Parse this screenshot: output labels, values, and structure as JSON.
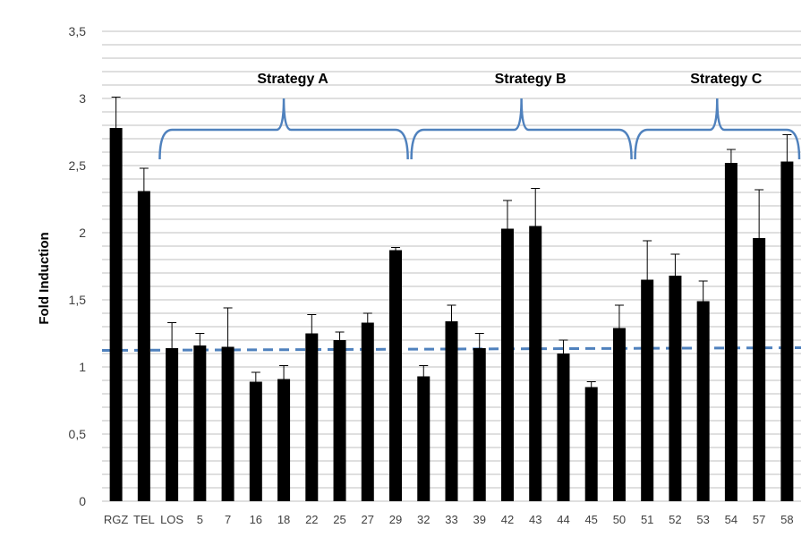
{
  "chart_data": {
    "type": "bar",
    "title": "",
    "xlabel": "",
    "ylabel": "Fold Induction",
    "ylim": [
      0,
      3.5
    ],
    "y_ticks": [
      "0",
      "0,5",
      "1",
      "1,5",
      "2",
      "2,5",
      "3",
      "3,5"
    ],
    "grid": true,
    "categories": [
      "RGZ",
      "TEL",
      "LOS",
      "5",
      "7",
      "16",
      "18",
      "22",
      "25",
      "27",
      "29",
      "32",
      "33",
      "39",
      "42",
      "43",
      "44",
      "45",
      "50",
      "51",
      "52",
      "53",
      "54",
      "57",
      "58"
    ],
    "values": [
      2.78,
      2.31,
      1.14,
      1.16,
      1.15,
      0.89,
      0.91,
      1.25,
      1.2,
      1.33,
      1.87,
      0.93,
      1.34,
      1.14,
      2.03,
      2.05,
      1.1,
      0.85,
      1.29,
      1.65,
      1.68,
      1.49,
      2.52,
      1.96,
      2.53
    ],
    "error": [
      0.23,
      0.17,
      0.19,
      0.09,
      0.29,
      0.07,
      0.1,
      0.14,
      0.06,
      0.07,
      0.02,
      0.08,
      0.12,
      0.11,
      0.21,
      0.28,
      0.1,
      0.04,
      0.17,
      0.29,
      0.16,
      0.15,
      0.1,
      0.36,
      0.2
    ],
    "reference_line": 1.13,
    "groups": [
      {
        "label": "Strategy A",
        "from": "LOS",
        "to": "29"
      },
      {
        "label": "Strategy B",
        "from": "32",
        "to": "50"
      },
      {
        "label": "Strategy C",
        "from": "51",
        "to": "58"
      }
    ],
    "colors": {
      "bar": "#000000",
      "bracket": "#4f81bd",
      "reference_line": "#4f81bd",
      "grid": "#bfbfbf"
    }
  }
}
